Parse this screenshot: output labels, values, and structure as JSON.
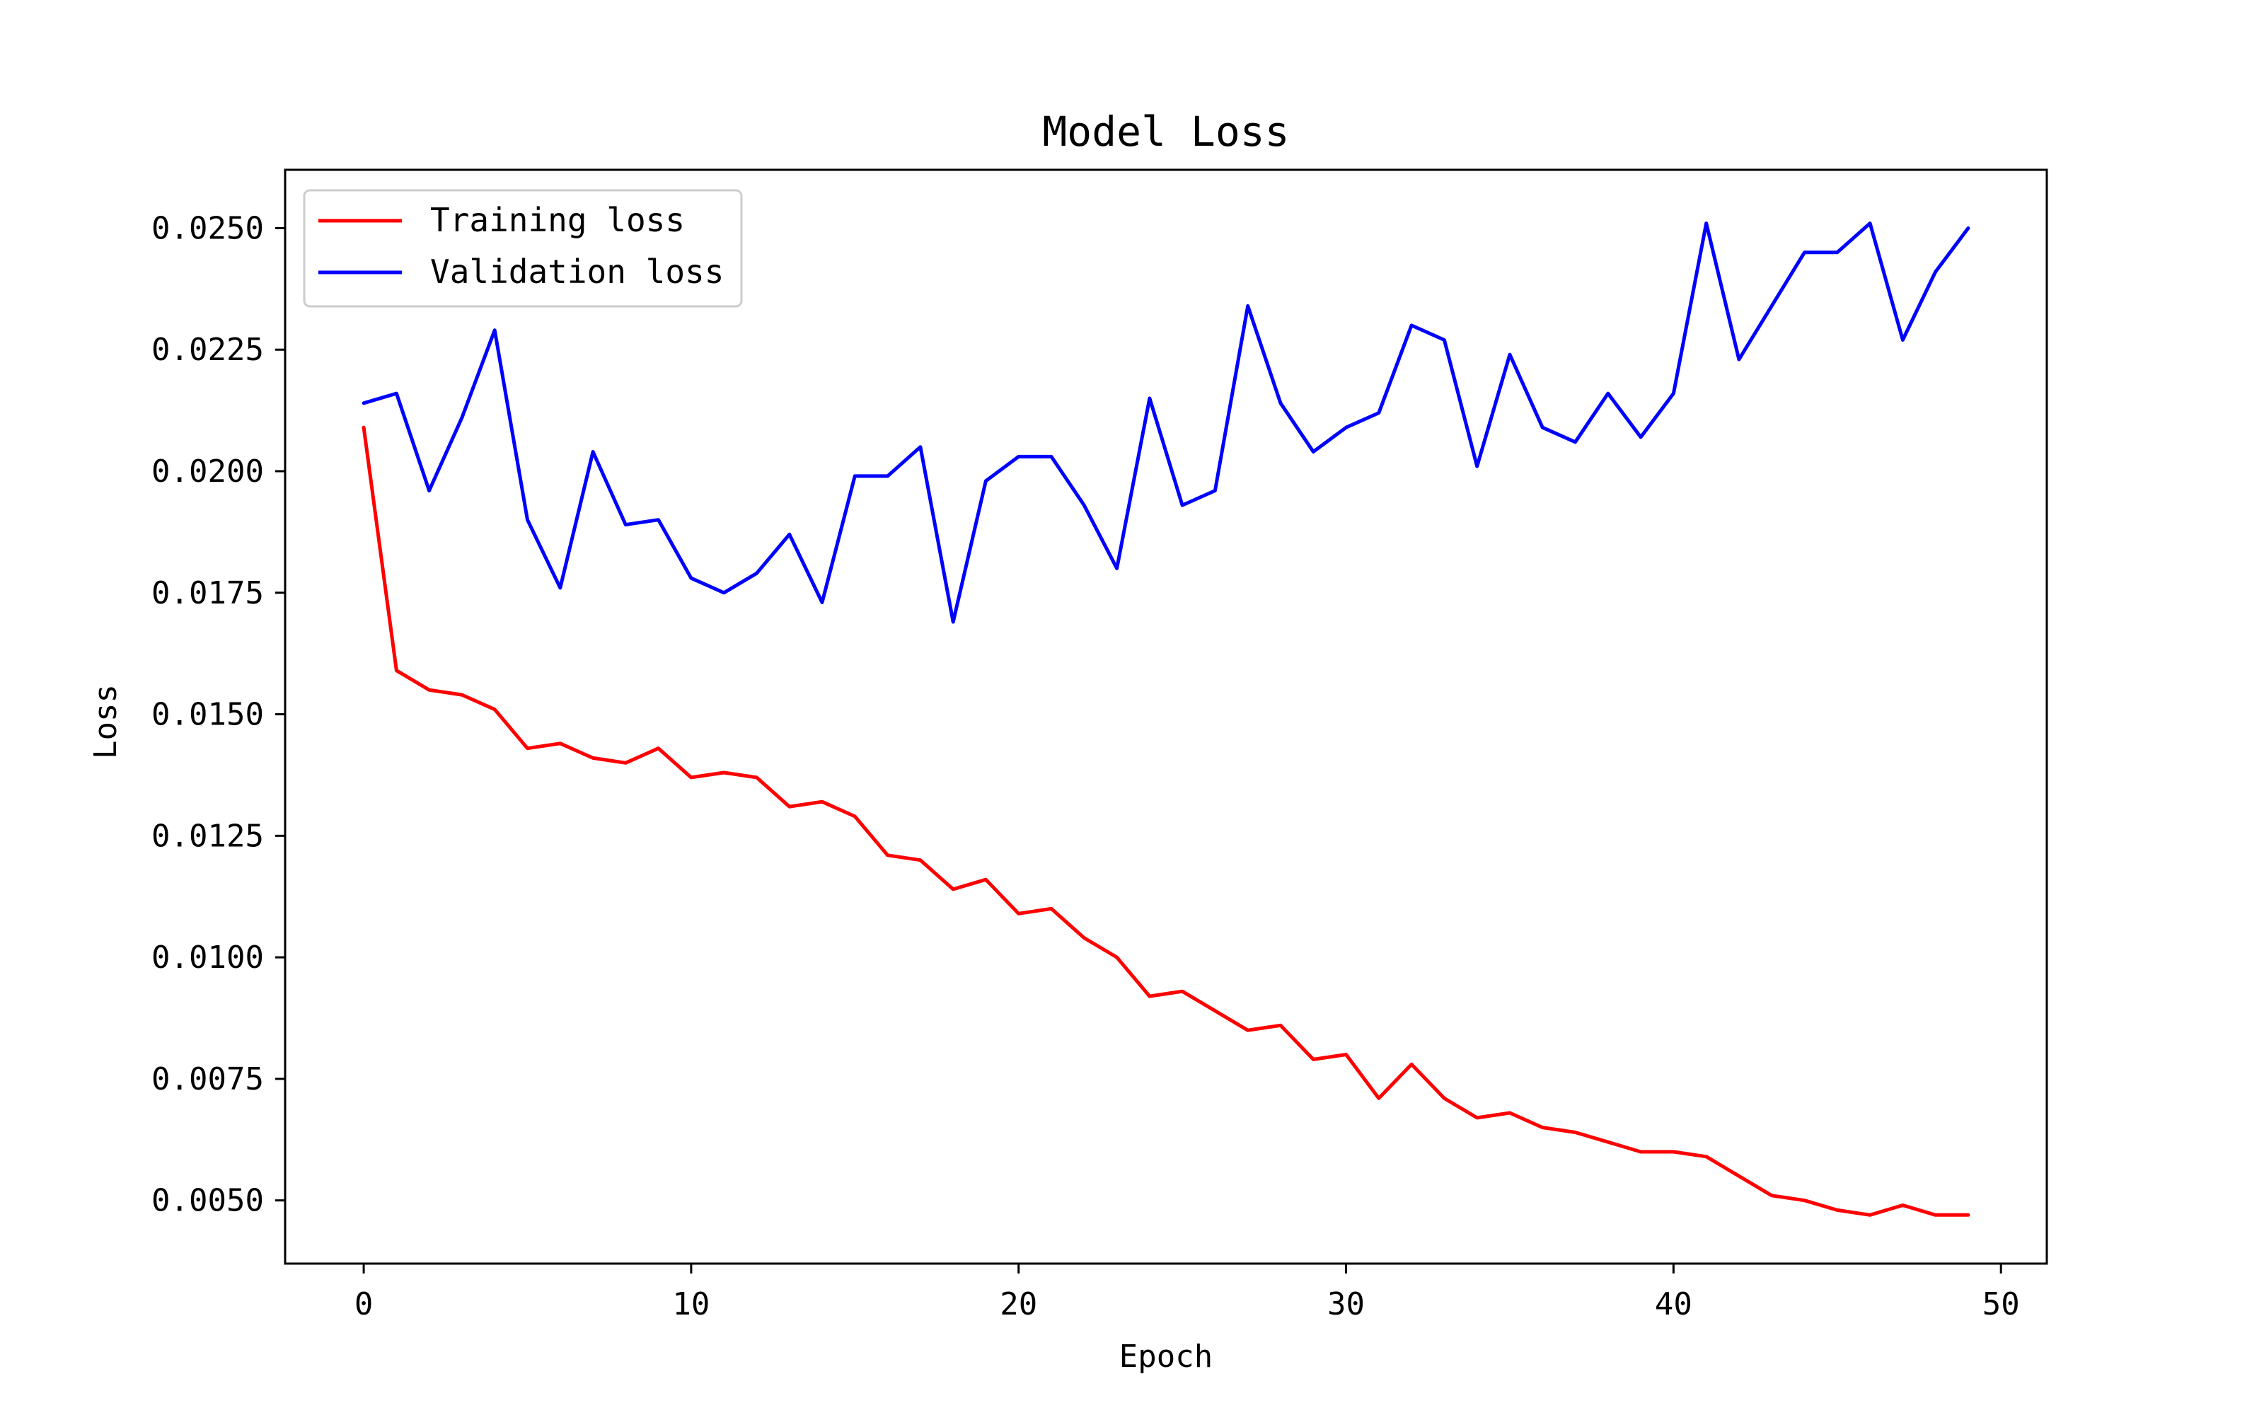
{
  "chart_data": {
    "type": "line",
    "title": "Model Loss",
    "xlabel": "Epoch",
    "ylabel": "Loss",
    "xlim": [
      -2.4,
      51.4
    ],
    "ylim": [
      0.0037,
      0.0262
    ],
    "xticks": [
      0,
      10,
      20,
      30,
      40,
      50
    ],
    "xtick_labels": [
      "0",
      "10",
      "20",
      "30",
      "40",
      "50"
    ],
    "yticks": [
      0.005,
      0.0075,
      0.01,
      0.0125,
      0.015,
      0.0175,
      0.02,
      0.0225,
      0.025
    ],
    "ytick_labels": [
      "0.0050",
      "0.0075",
      "0.0100",
      "0.0125",
      "0.0150",
      "0.0175",
      "0.0200",
      "0.0225",
      "0.0250"
    ],
    "grid": false,
    "legend_position": "top-left",
    "x": [
      0,
      1,
      2,
      3,
      4,
      5,
      6,
      7,
      8,
      9,
      10,
      11,
      12,
      13,
      14,
      15,
      16,
      17,
      18,
      19,
      20,
      21,
      22,
      23,
      24,
      25,
      26,
      27,
      28,
      29,
      30,
      31,
      32,
      33,
      34,
      35,
      36,
      37,
      38,
      39,
      40,
      41,
      42,
      43,
      44,
      45,
      46,
      47,
      48,
      49
    ],
    "series": [
      {
        "name": "Training loss",
        "color": "#ff0000",
        "values": [
          0.0209,
          0.0159,
          0.0155,
          0.0154,
          0.0151,
          0.0143,
          0.0144,
          0.0141,
          0.014,
          0.0143,
          0.0137,
          0.0138,
          0.0137,
          0.0131,
          0.0132,
          0.0129,
          0.0121,
          0.012,
          0.0114,
          0.0116,
          0.0109,
          0.011,
          0.0104,
          0.01,
          0.0092,
          0.0093,
          0.0089,
          0.0085,
          0.0086,
          0.0079,
          0.008,
          0.0071,
          0.0078,
          0.0071,
          0.0067,
          0.0068,
          0.0065,
          0.0064,
          0.0062,
          0.006,
          0.006,
          0.0059,
          0.0055,
          0.0051,
          0.005,
          0.0048,
          0.0047,
          0.0049,
          0.0047,
          0.0047
        ]
      },
      {
        "name": "Validation loss",
        "color": "#0000ff",
        "values": [
          0.0214,
          0.0216,
          0.0196,
          0.0211,
          0.0229,
          0.019,
          0.0176,
          0.0204,
          0.0189,
          0.019,
          0.0178,
          0.0175,
          0.0179,
          0.0187,
          0.0173,
          0.0199,
          0.0199,
          0.0205,
          0.0169,
          0.0198,
          0.0203,
          0.0203,
          0.0193,
          0.018,
          0.0215,
          0.0193,
          0.0196,
          0.0234,
          0.0214,
          0.0204,
          0.0209,
          0.0212,
          0.023,
          0.0227,
          0.0201,
          0.0224,
          0.0209,
          0.0206,
          0.0216,
          0.0207,
          0.0216,
          0.0251,
          0.0223,
          0.0234,
          0.0245,
          0.0245,
          0.0251,
          0.0227,
          0.0241,
          0.025
        ]
      }
    ]
  }
}
